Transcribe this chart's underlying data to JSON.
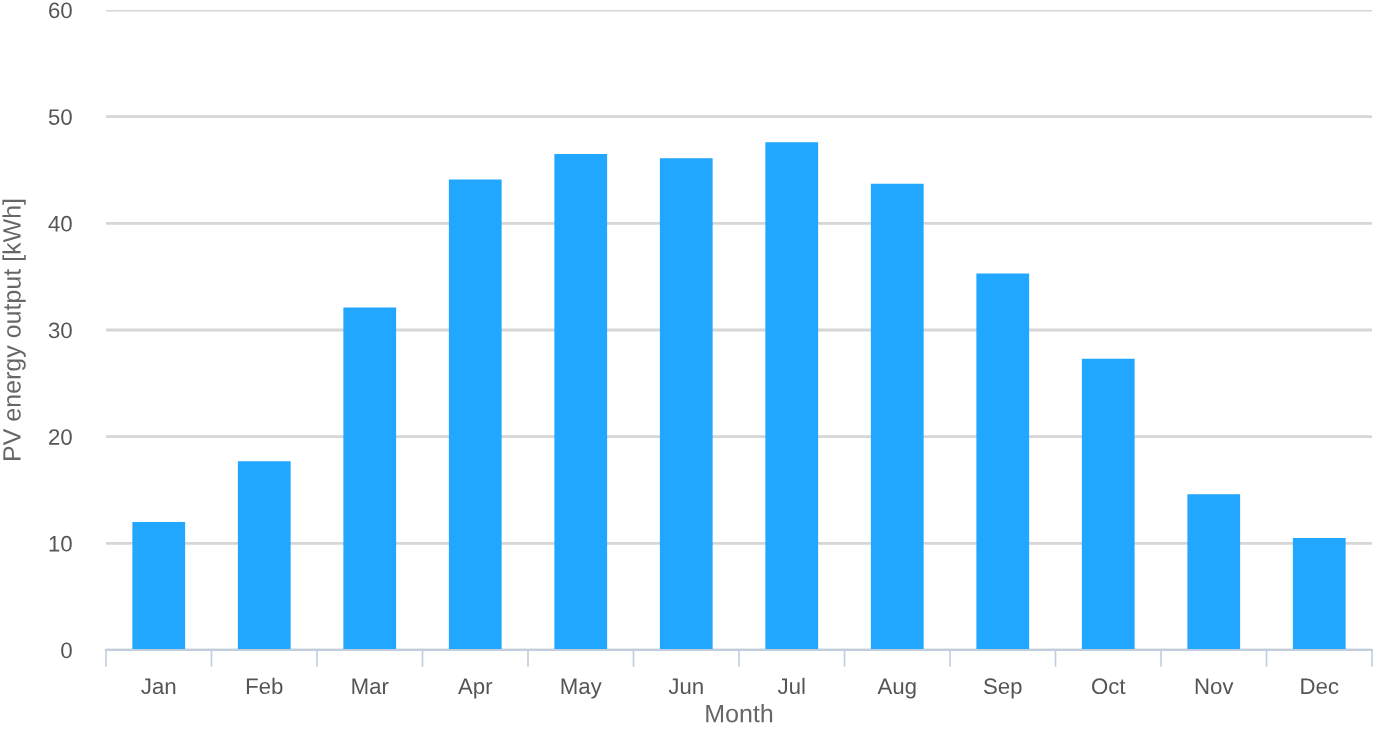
{
  "chart_data": {
    "type": "bar",
    "xlabel": "Month",
    "ylabel": "PV energy output [kWh]",
    "categories": [
      "Jan",
      "Feb",
      "Mar",
      "Apr",
      "May",
      "Jun",
      "Jul",
      "Aug",
      "Sep",
      "Oct",
      "Nov",
      "Dec"
    ],
    "values": [
      12.0,
      17.7,
      32.1,
      44.1,
      46.5,
      46.1,
      47.6,
      43.7,
      35.3,
      27.3,
      14.6,
      10.5
    ],
    "color": "#21a7ff",
    "ylim": [
      0,
      60
    ],
    "yticks": [
      0,
      10,
      20,
      30,
      40,
      50,
      60
    ],
    "grid": "y"
  }
}
